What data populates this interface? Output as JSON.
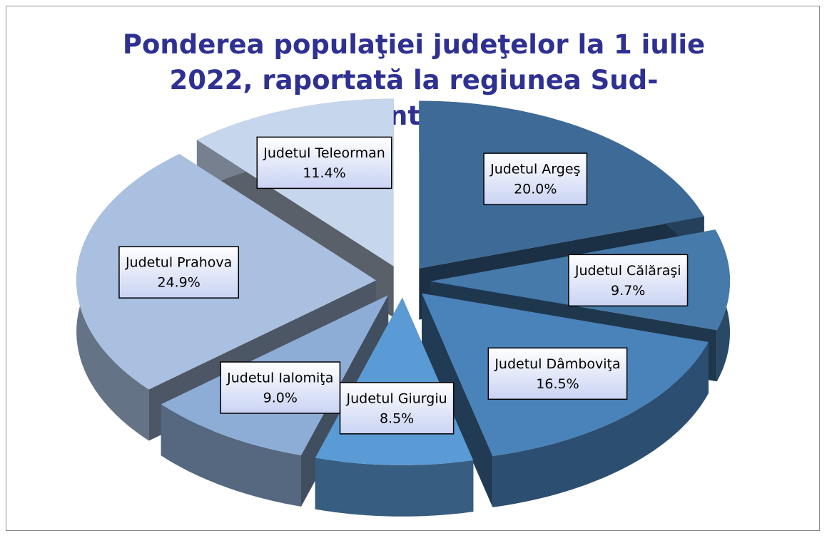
{
  "chart_data": {
    "type": "pie",
    "title": "Ponderea populaţiei judeţelor la 1 iulie 2022, raportată la regiunea Sud-Muntenia",
    "categories": [
      "Judetul Argeş",
      "Judetul Călăraşi",
      "Judetul Dâmboviţa",
      "Judetul Giurgiu",
      "Judetul Ialomiţa",
      "Judetul Prahova",
      "Judetul Teleorman"
    ],
    "values": [
      20.0,
      9.7,
      16.5,
      8.5,
      9.0,
      24.9,
      11.4
    ],
    "value_labels": [
      "20.0%",
      "9.7%",
      "16.5%",
      "8.5%",
      "9.0%",
      "24.9%",
      "11.4%"
    ],
    "colors": [
      "#3d6a96",
      "#457aaa",
      "#4a82ba",
      "#5b9bd5",
      "#8eadd6",
      "#a9c0e0",
      "#c6d6ec"
    ]
  }
}
